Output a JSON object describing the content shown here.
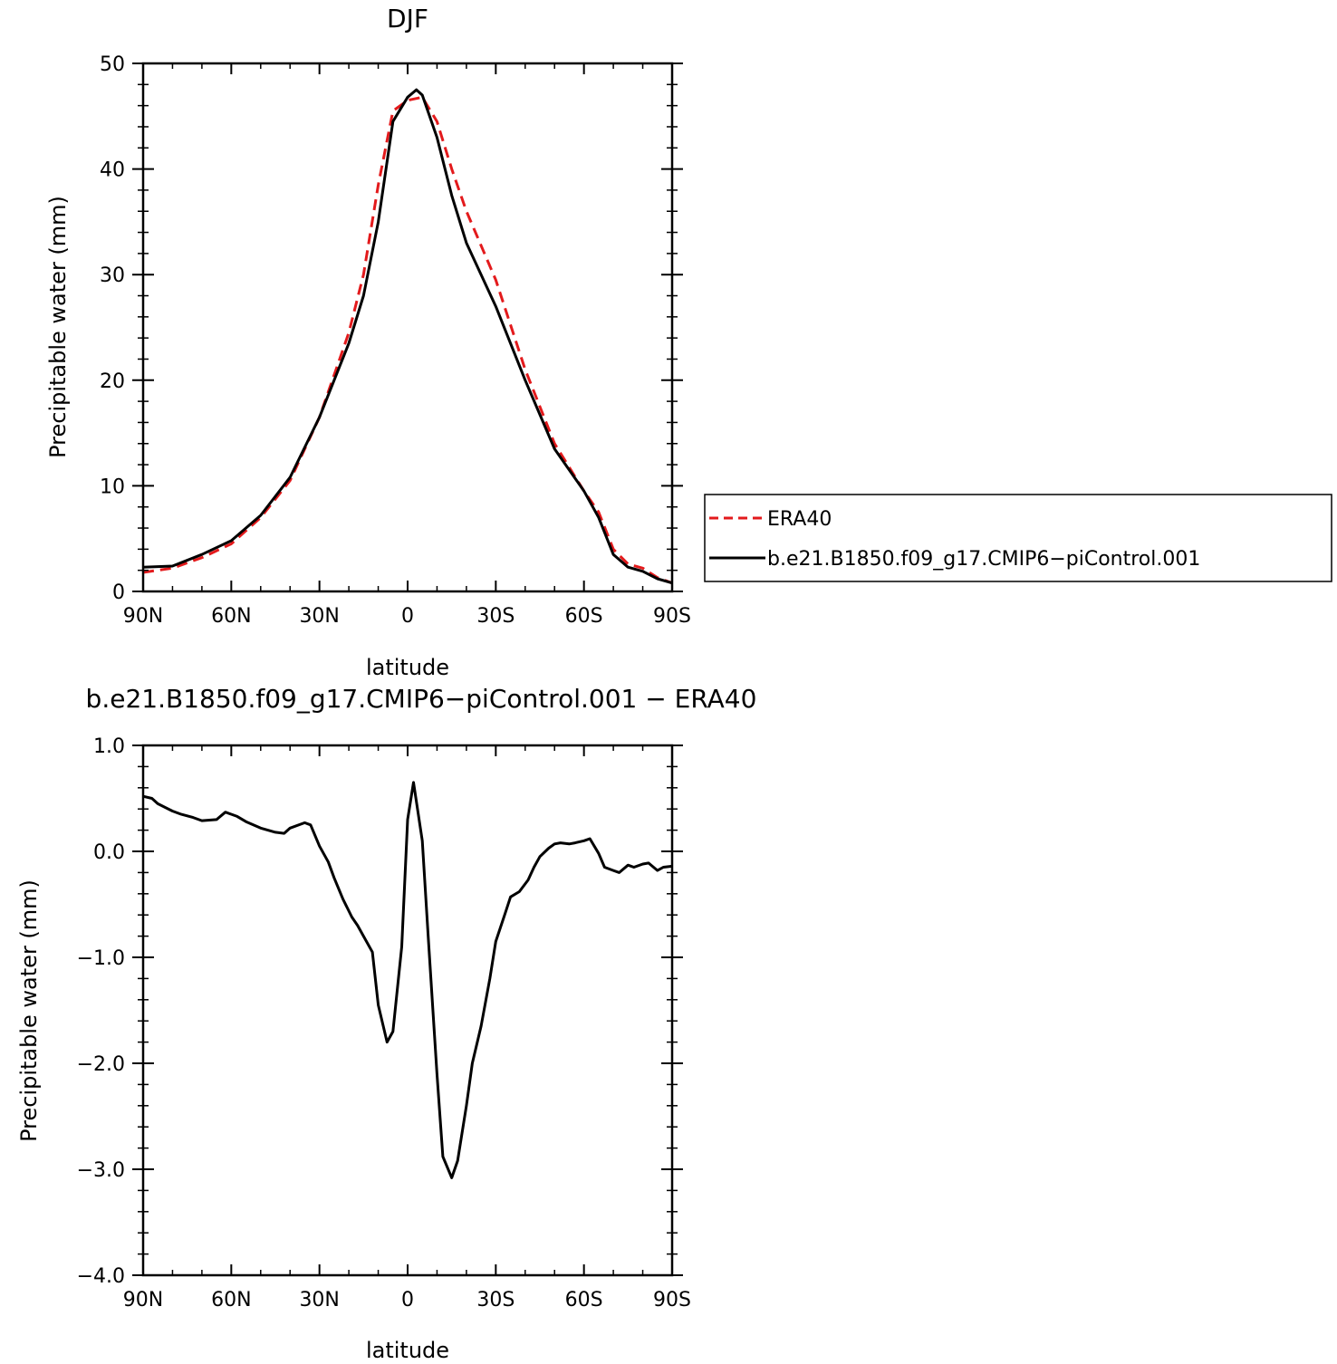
{
  "chart_data": [
    {
      "type": "line",
      "title": "DJF",
      "xlabel": "latitude",
      "ylabel": "Precipitable water (mm)",
      "xlim": [
        90,
        -90
      ],
      "ylim": [
        0,
        50
      ],
      "xticks": [
        90,
        60,
        30,
        0,
        -30,
        -60,
        -90
      ],
      "xtick_labels": [
        "90N",
        "60N",
        "30N",
        "0",
        "30S",
        "60S",
        "90S"
      ],
      "yticks": [
        0,
        10,
        20,
        30,
        40,
        50
      ],
      "ytick_labels": [
        "0",
        "10",
        "20",
        "30",
        "40",
        "50"
      ],
      "grid": false,
      "legend_position": "right",
      "series": [
        {
          "name": "ERA40",
          "color": "#e31a1c",
          "dash": "dashed",
          "x": [
            90,
            80,
            70,
            60,
            50,
            40,
            30,
            20,
            15,
            10,
            5,
            0,
            -5,
            -10,
            -15,
            -20,
            -30,
            -40,
            -50,
            -60,
            -65,
            -70,
            -75,
            -80,
            -85,
            -90
          ],
          "y": [
            1.8,
            2.2,
            3.2,
            4.5,
            7.0,
            10.5,
            16.5,
            24.5,
            30.0,
            38.5,
            45.5,
            46.5,
            46.8,
            44.5,
            40.0,
            36.0,
            29.5,
            21.0,
            14.0,
            9.5,
            7.5,
            4.0,
            2.6,
            2.2,
            1.3,
            0.8
          ]
        },
        {
          "name": "b.e21.B1850.f09_g17.CMIP6−piControl.001",
          "color": "#000000",
          "dash": "solid",
          "x": [
            90,
            80,
            70,
            60,
            50,
            40,
            30,
            20,
            15,
            10,
            5,
            0,
            -3,
            -5,
            -10,
            -15,
            -20,
            -30,
            -40,
            -50,
            -60,
            -65,
            -70,
            -75,
            -80,
            -85,
            -90
          ],
          "y": [
            2.3,
            2.4,
            3.5,
            4.8,
            7.2,
            10.8,
            16.5,
            23.5,
            28.0,
            35.0,
            44.5,
            46.8,
            47.5,
            47.0,
            43.0,
            37.5,
            33.0,
            27.0,
            20.0,
            13.5,
            9.5,
            7.0,
            3.5,
            2.3,
            1.9,
            1.2,
            0.8
          ]
        }
      ]
    },
    {
      "type": "line",
      "title": "b.e21.B1850.f09_g17.CMIP6−piControl.001  −  ERA40",
      "xlabel": "latitude",
      "ylabel": "Precipitable water (mm)",
      "xlim": [
        90,
        -90
      ],
      "ylim": [
        -4.0,
        1.0
      ],
      "xticks": [
        90,
        60,
        30,
        0,
        -30,
        -60,
        -90
      ],
      "xtick_labels": [
        "90N",
        "60N",
        "30N",
        "0",
        "30S",
        "60S",
        "90S"
      ],
      "yticks": [
        1.0,
        0.0,
        -1.0,
        -2.0,
        -3.0,
        -4.0
      ],
      "ytick_labels": [
        "1.0",
        "0.0",
        "−1.0",
        "−2.0",
        "−3.0",
        "−4.0"
      ],
      "grid": false,
      "series": [
        {
          "color": "#000000",
          "dash": "solid",
          "x": [
            90,
            87,
            85,
            80,
            77,
            73,
            70,
            65,
            62,
            58,
            55,
            50,
            45,
            42,
            40,
            35,
            33,
            30,
            27,
            25,
            22,
            19,
            17,
            15,
            12,
            10,
            7,
            5,
            2,
            0,
            -2,
            -5,
            -7,
            -10,
            -12,
            -15,
            -17,
            -20,
            -22,
            -25,
            -28,
            -30,
            -33,
            -35,
            -38,
            -41,
            -43,
            -45,
            -48,
            -50,
            -52,
            -55,
            -57,
            -60,
            -62,
            -65,
            -67,
            -70,
            -72,
            -75,
            -77,
            -80,
            -82,
            -85,
            -87,
            -90
          ],
          "y": [
            0.52,
            0.5,
            0.45,
            0.38,
            0.35,
            0.32,
            0.29,
            0.3,
            0.37,
            0.33,
            0.28,
            0.22,
            0.18,
            0.17,
            0.22,
            0.27,
            0.25,
            0.05,
            -0.1,
            -0.25,
            -0.45,
            -0.62,
            -0.7,
            -0.8,
            -0.95,
            -1.45,
            -1.8,
            -1.7,
            -0.9,
            0.3,
            0.65,
            0.1,
            -0.8,
            -2.1,
            -2.88,
            -3.08,
            -2.92,
            -2.4,
            -2.0,
            -1.65,
            -1.2,
            -0.85,
            -0.6,
            -0.43,
            -0.38,
            -0.27,
            -0.15,
            -0.05,
            0.03,
            0.07,
            0.08,
            0.07,
            0.08,
            0.1,
            0.12,
            -0.02,
            -0.15,
            -0.18,
            -0.2,
            -0.13,
            -0.15,
            -0.12,
            -0.11,
            -0.18,
            -0.15,
            -0.14
          ]
        }
      ]
    }
  ]
}
